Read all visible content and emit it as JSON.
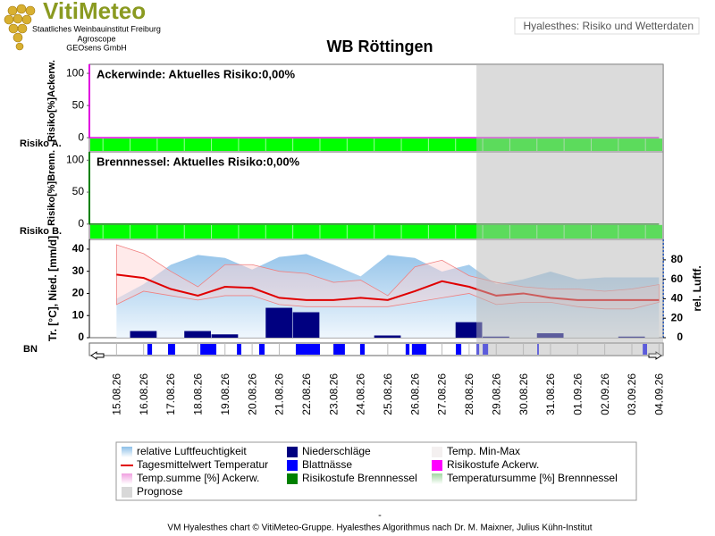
{
  "header": {
    "logo": "VitiMeteo",
    "lines": [
      "Staatliches Weinbauinstitut Freiburg",
      "Agroscope",
      "GEOsens GmbH"
    ],
    "tab": "Hyalesthes: Risiko und Wetterdaten",
    "title": "WB Röttingen"
  },
  "x": [
    "15.08.26",
    "16.08.26",
    "17.08.26",
    "18.08.26",
    "19.08.26",
    "20.08.26",
    "21.08.26",
    "22.08.26",
    "23.08.26",
    "24.08.26",
    "25.08.26",
    "26.08.26",
    "27.08.26",
    "28.08.26",
    "29.08.26",
    "30.08.26",
    "31.08.26",
    "01.09.26",
    "02.09.26",
    "03.09.26",
    "04.09.26"
  ],
  "prognose_start": 13.27,
  "chart_data": [
    {
      "type": "risk",
      "annotation": "Ackerwinde: Aktuelles Risiko:0,00%",
      "ylabel": "Risiko[%]Ackerw.",
      "row_label": "Risiko A.",
      "color": "#e000e0",
      "level_color": "#00ff00",
      "ylim": [
        -22,
        114
      ],
      "yticks": [
        0,
        50,
        100
      ],
      "values": [
        0,
        0,
        0,
        0,
        0,
        0,
        0,
        0,
        0,
        0,
        0,
        0,
        0,
        0,
        0,
        0,
        0,
        0,
        0,
        0,
        0
      ]
    },
    {
      "type": "risk",
      "annotation": "Brennnessel: Aktuelles Risiko:0,00%",
      "ylabel": "Risiko[%]Brenn.",
      "row_label": "Risiko B.",
      "color": "#008000",
      "level_color": "#00ff00",
      "ylim": [
        -24,
        113
      ],
      "yticks": [
        0,
        50,
        100
      ],
      "values": [
        0,
        0,
        0,
        0,
        0,
        0,
        0,
        0,
        0,
        0,
        0,
        0,
        0,
        0,
        0,
        0,
        0,
        0,
        0,
        0,
        0
      ]
    },
    {
      "type": "weather",
      "ylabel": "Tr. [°C], Nied. [mm/d]",
      "y2label": "rel. Luftf.",
      "row_label": "BN",
      "ylim": [
        0,
        44.4
      ],
      "yticks": [
        0,
        10,
        20,
        30,
        40
      ],
      "y2lim": [
        0,
        101
      ],
      "y2ticks": [
        0,
        20,
        40,
        60,
        80
      ],
      "humidity": {
        "color": "#9cc8ec",
        "axis": "y2",
        "values": [
          40,
          55,
          75,
          85,
          82,
          70,
          83,
          86,
          75,
          63,
          85,
          82,
          68,
          75,
          55,
          60,
          68,
          60,
          62,
          62,
          62
        ]
      },
      "temp_max": [
        42,
        38,
        30,
        23,
        33,
        33,
        30,
        29,
        25,
        26,
        19,
        32,
        35,
        28,
        25,
        23,
        22,
        22,
        21,
        22,
        24
      ],
      "temp_min": [
        15,
        21,
        19,
        17,
        19,
        19,
        15,
        14,
        14,
        14,
        14,
        16,
        18,
        20,
        15,
        16,
        16,
        14,
        13,
        13,
        16
      ],
      "temp": {
        "color": "#e00000",
        "values": [
          28.5,
          27,
          22,
          19,
          23,
          22.5,
          18,
          17,
          17,
          18,
          17,
          21,
          25.5,
          23,
          19,
          20,
          18,
          17,
          17,
          17,
          17
        ]
      },
      "precip": {
        "color": "#000080",
        "values": [
          0,
          3,
          0,
          3,
          1.5,
          0,
          13.5,
          11.5,
          0,
          0,
          1,
          0,
          0,
          7,
          0.5,
          0,
          2,
          0,
          0,
          0.5,
          0
        ]
      },
      "blattnaesse": {
        "color": "#0000ff",
        "intervals": [
          [
            1.14,
            1.31
          ],
          [
            1.9,
            2.16
          ],
          [
            3.09,
            3.68
          ],
          [
            4.44,
            4.6
          ],
          [
            5.26,
            5.46
          ],
          [
            6.61,
            7.5
          ],
          [
            8.0,
            8.42
          ],
          [
            8.98,
            9.15
          ],
          [
            10.66,
            10.8
          ],
          [
            10.89,
            11.42
          ],
          [
            12.51,
            12.71
          ],
          [
            13.27,
            13.37
          ],
          [
            13.5,
            13.7
          ],
          [
            15.51,
            15.57
          ],
          [
            19.4,
            19.56
          ]
        ]
      }
    }
  ],
  "legend": [
    {
      "name": "relative Luftfeuchtigkeit",
      "color": "#9cc8ec"
    },
    {
      "name": "Niederschläge",
      "color": "#000080"
    },
    {
      "name": "Temp. Min-Max",
      "color": "#f4f0f0"
    },
    {
      "name": "Tagesmittelwert Temperatur",
      "color": "#e00000",
      "line": true
    },
    {
      "name": "Blattnässe",
      "color": "#0000ff"
    },
    {
      "name": "Risikostufe Ackerw.",
      "color": "#ff00ff"
    },
    {
      "name": "Temp.summe [%] Ackerw.",
      "color": "#f0a0e0"
    },
    {
      "name": "Risikostufe Brennnessel",
      "color": "#008000"
    },
    {
      "name": "Temperatursumme [%] Brennnessel",
      "color": "#a0d8a0"
    },
    {
      "name": "Prognose",
      "color": "#d8d8d8"
    }
  ],
  "footer": {
    "dash": "-",
    "credit": "VM Hyalesthes chart © VitiMeteo-Gruppe. Hyalesthes Algorithmus nach Dr. M. Maixner, Julius Kühn-Institut"
  }
}
